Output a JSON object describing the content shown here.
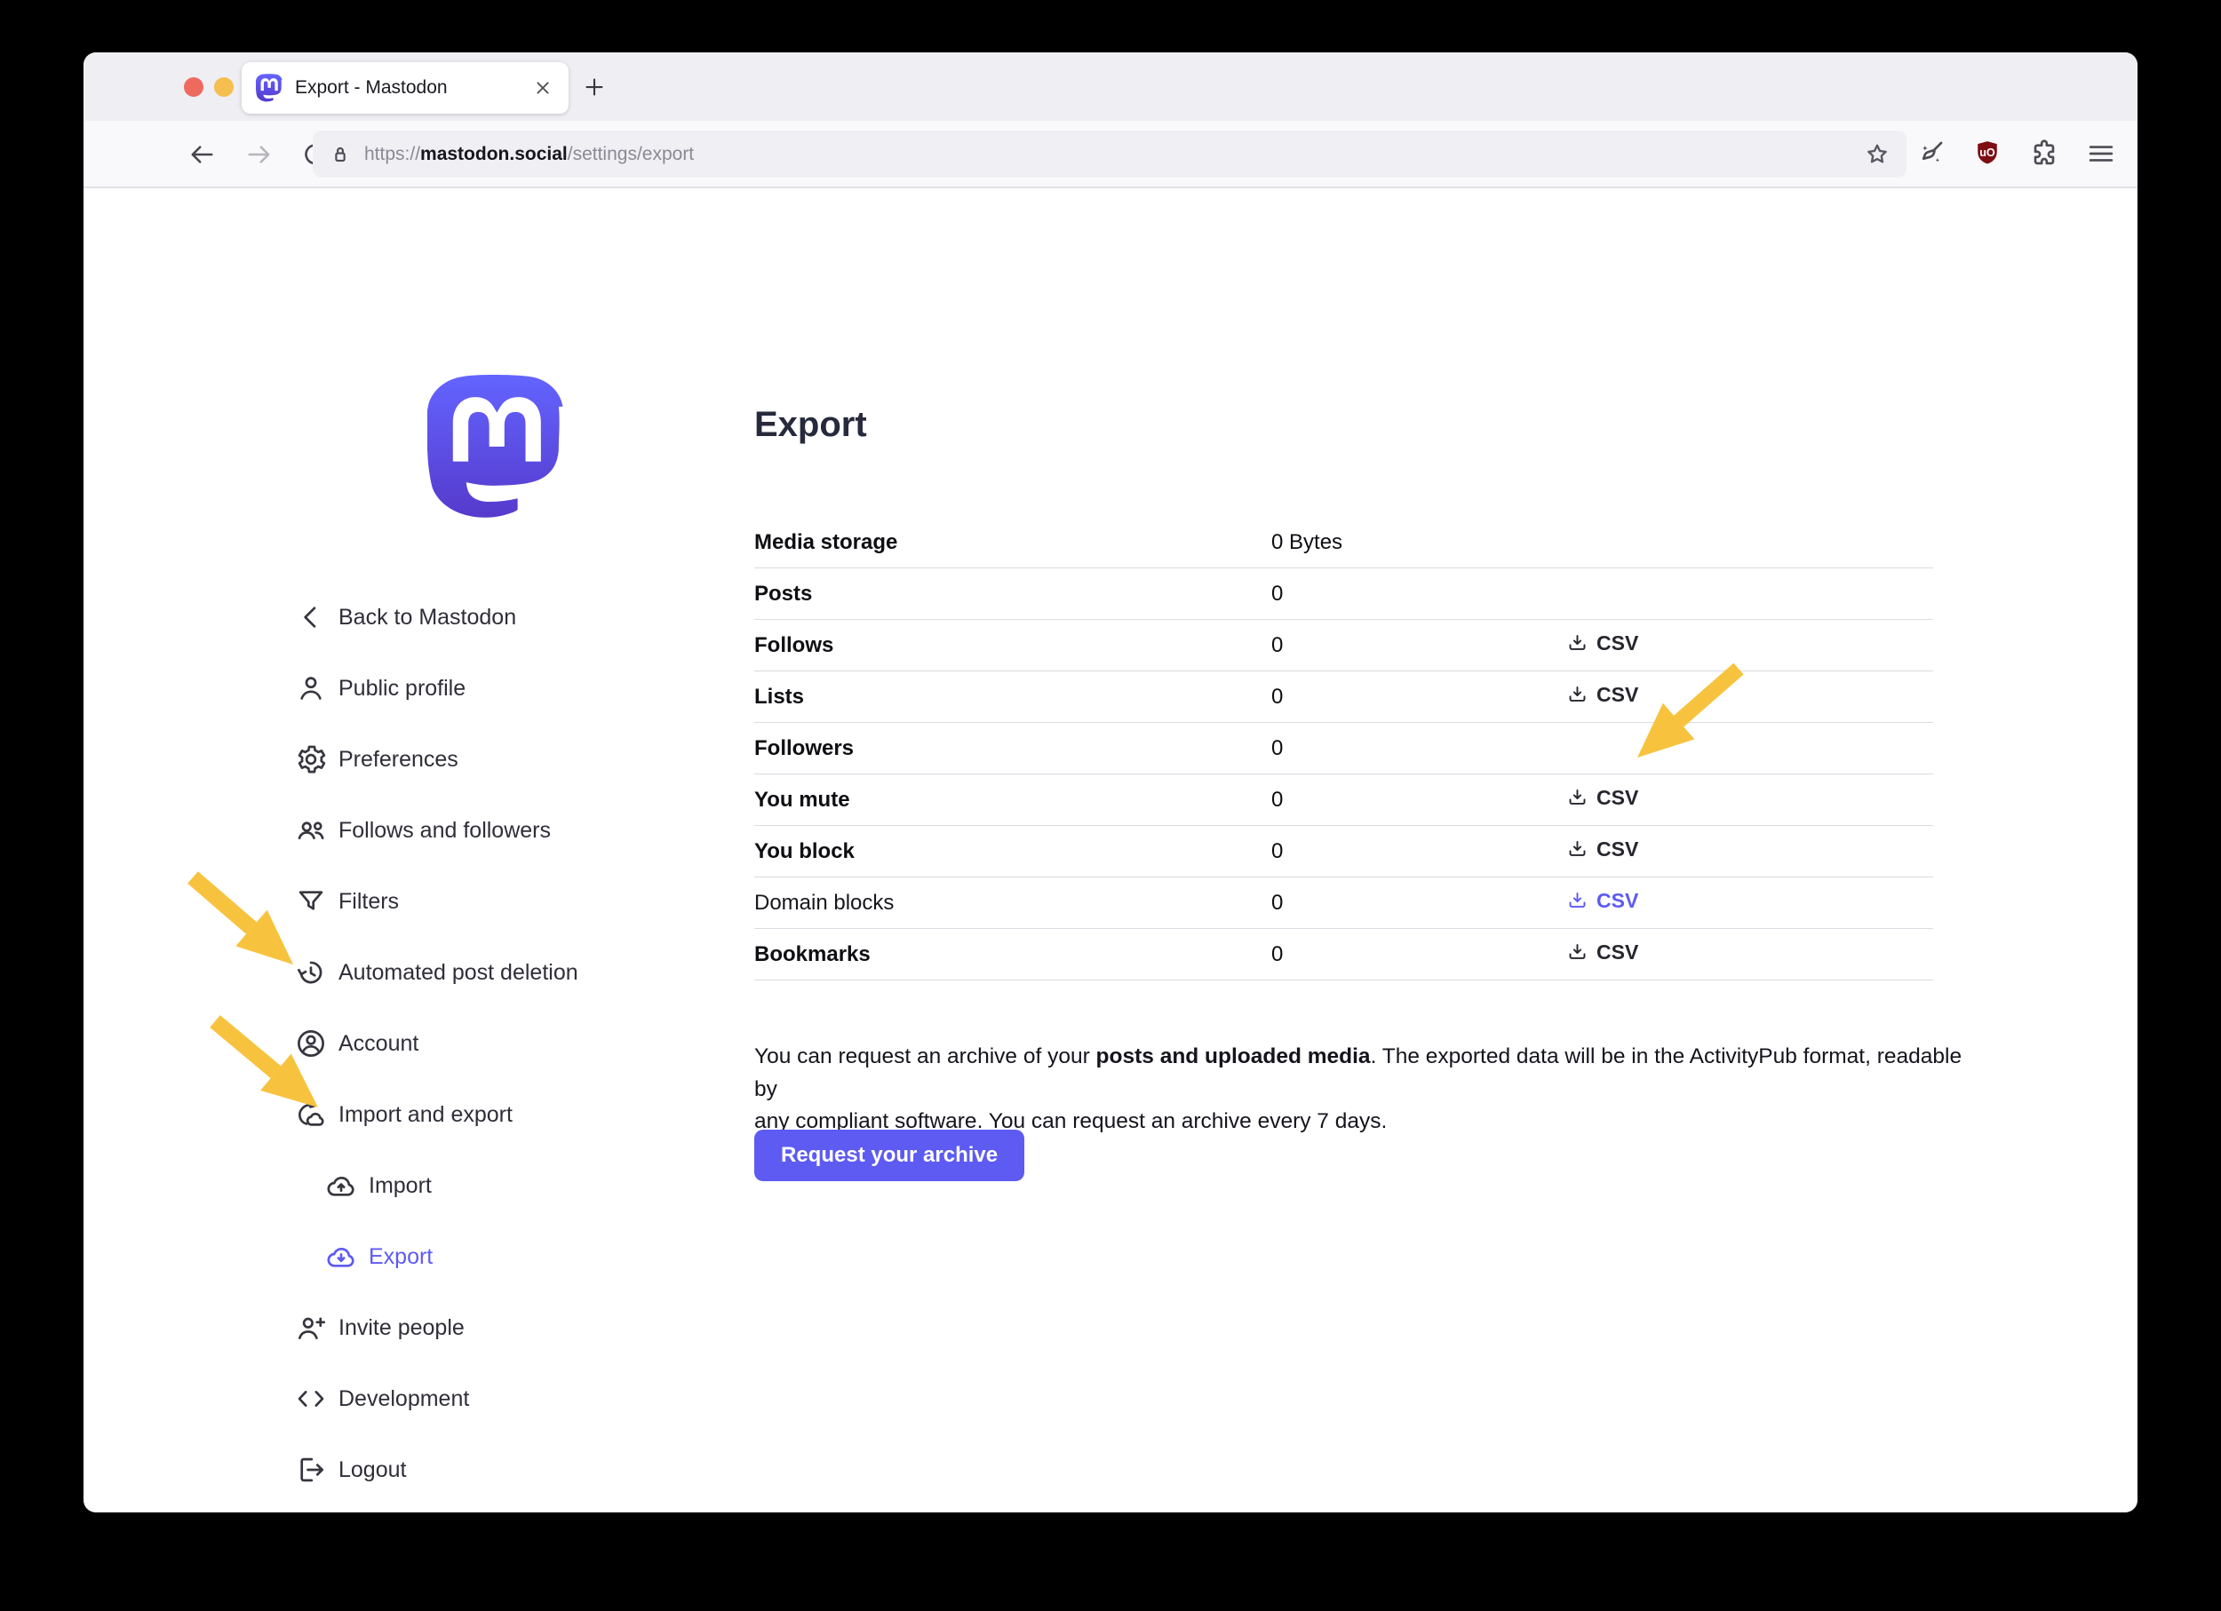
{
  "browser": {
    "tab_title": "Export - Mastodon",
    "url": {
      "scheme": "https://",
      "domain": "mastodon.social",
      "path": "/settings/export"
    }
  },
  "sidebar": {
    "items": [
      {
        "label": "Back to Mastodon",
        "icon": "chevron-left",
        "indent": false,
        "active": false
      },
      {
        "label": "Public profile",
        "icon": "person",
        "indent": false,
        "active": false
      },
      {
        "label": "Preferences",
        "icon": "gear",
        "indent": false,
        "active": false
      },
      {
        "label": "Follows and followers",
        "icon": "people",
        "indent": false,
        "active": false
      },
      {
        "label": "Filters",
        "icon": "filter",
        "indent": false,
        "active": false
      },
      {
        "label": "Automated post deletion",
        "icon": "history",
        "indent": false,
        "active": false
      },
      {
        "label": "Account",
        "icon": "account-circle",
        "indent": false,
        "active": false
      },
      {
        "label": "Import and export",
        "icon": "cloud-sync",
        "indent": false,
        "active": false
      },
      {
        "label": "Import",
        "icon": "cloud-upload",
        "indent": true,
        "active": false
      },
      {
        "label": "Export",
        "icon": "cloud-download",
        "indent": true,
        "active": true
      },
      {
        "label": "Invite people",
        "icon": "person-add",
        "indent": false,
        "active": false
      },
      {
        "label": "Development",
        "icon": "code",
        "indent": false,
        "active": false
      },
      {
        "label": "Logout",
        "icon": "logout",
        "indent": false,
        "active": false
      }
    ]
  },
  "main": {
    "title": "Export",
    "csv_label": "CSV",
    "table": [
      {
        "label": "Media storage",
        "value": "0 Bytes",
        "csv": false,
        "highlight": false
      },
      {
        "label": "Posts",
        "value": "0",
        "csv": false,
        "highlight": false
      },
      {
        "label": "Follows",
        "value": "0",
        "csv": true,
        "highlight": false
      },
      {
        "label": "Lists",
        "value": "0",
        "csv": true,
        "highlight": false
      },
      {
        "label": "Followers",
        "value": "0",
        "csv": false,
        "highlight": false
      },
      {
        "label": "You mute",
        "value": "0",
        "csv": true,
        "highlight": false
      },
      {
        "label": "You block",
        "value": "0",
        "csv": true,
        "highlight": false
      },
      {
        "label": "Domain blocks",
        "value": "0",
        "csv": true,
        "highlight": true
      },
      {
        "label": "Bookmarks",
        "value": "0",
        "csv": true,
        "highlight": false
      }
    ],
    "archive_text": {
      "pre": "You can request an archive of your ",
      "bold": "posts and uploaded media",
      "mid": ". The exported data will be in the ActivityPub format, readable by",
      "end": "any compliant software. You can request an archive every 7 days."
    },
    "request_button": "Request your archive"
  },
  "colors": {
    "accent": "#5d5bf2",
    "logo_gradient_top": "#6364ff",
    "logo_gradient_bottom": "#563acc",
    "arrow": "#f7c33e",
    "ublock_red": "#7e0d12",
    "traffic_lights": [
      "#ee6a5f",
      "#f5bf4f",
      "#61c554"
    ]
  }
}
